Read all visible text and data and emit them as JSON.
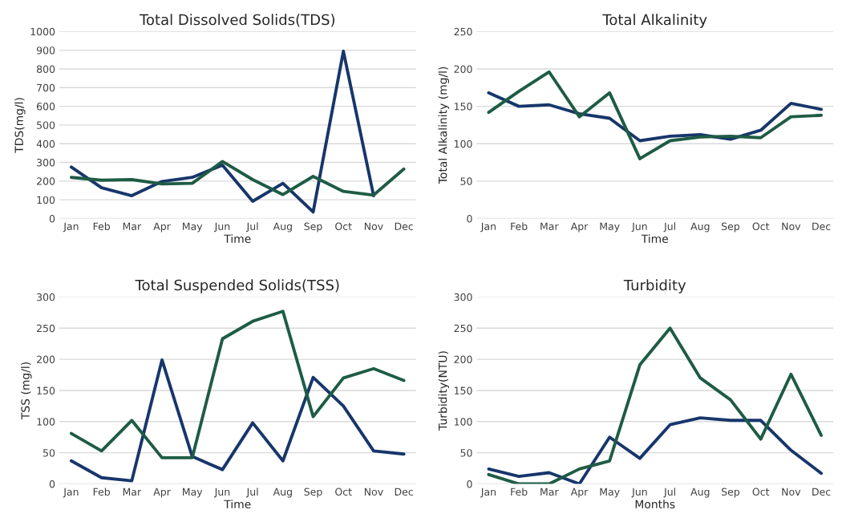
{
  "chart_data": [
    {
      "type": "line",
      "title": "Total Dissolved Solids(TDS)",
      "xlabel": "Time",
      "ylabel": "TDS(mg/l)",
      "categories": [
        "Jan",
        "Feb",
        "Mar",
        "Apr",
        "May",
        "Jun",
        "Jul",
        "Aug",
        "Sep",
        "Oct",
        "Nov",
        "Dec"
      ],
      "ylim": [
        0,
        1000
      ],
      "yticks": [
        0,
        100,
        200,
        300,
        400,
        500,
        600,
        700,
        800,
        900,
        1000
      ],
      "grid": "y",
      "marker": "none",
      "line_style": "solid",
      "series": [
        {
          "color": "#17366b",
          "values": [
            275,
            165,
            122,
            198,
            220,
            285,
            92,
            188,
            35,
            895,
            122,
            null
          ]
        },
        {
          "color": "#1e5c44",
          "values": [
            220,
            205,
            208,
            185,
            188,
            305,
            208,
            128,
            225,
            145,
            125,
            265
          ]
        }
      ]
    },
    {
      "type": "line",
      "title": "Total Alkalinity",
      "xlabel": "Time",
      "ylabel": "Total Alkalinity (mg/l)",
      "categories": [
        "Jan",
        "Feb",
        "Mar",
        "Apr",
        "May",
        "Jun",
        "Jul",
        "Aug",
        "Sep",
        "Oct",
        "Nov",
        "Dec"
      ],
      "ylim": [
        0,
        250
      ],
      "yticks": [
        0,
        50,
        100,
        150,
        200,
        250
      ],
      "grid": "y",
      "marker": "none",
      "line_style": "solid",
      "series": [
        {
          "color": "#17366b",
          "values": [
            168,
            150,
            152,
            140,
            134,
            104,
            110,
            112,
            106,
            118,
            154,
            146
          ]
        },
        {
          "color": "#1e5c44",
          "values": [
            142,
            170,
            196,
            136,
            168,
            80,
            104,
            109,
            110,
            108,
            136,
            138
          ]
        }
      ]
    },
    {
      "type": "line",
      "title": "Total Suspended Solids(TSS)",
      "xlabel": "Time",
      "ylabel": "TSS (mg/l)",
      "categories": [
        "Jan",
        "Feb",
        "Mar",
        "Apr",
        "May",
        "Jun",
        "Jul",
        "Aug",
        "Sep",
        "Oct",
        "Nov",
        "Dec"
      ],
      "ylim": [
        0,
        300
      ],
      "yticks": [
        0,
        50,
        100,
        150,
        200,
        250,
        300
      ],
      "grid": "y",
      "marker": "none",
      "line_style": "solid",
      "series": [
        {
          "color": "#17366b",
          "values": [
            37,
            10,
            5,
            199,
            44,
            23,
            98,
            37,
            171,
            125,
            53,
            48
          ]
        },
        {
          "color": "#1e5c44",
          "values": [
            81,
            53,
            102,
            42,
            42,
            233,
            261,
            277,
            108,
            170,
            185,
            166
          ]
        }
      ]
    },
    {
      "type": "line",
      "title": "Turbidity",
      "xlabel": "Months",
      "ylabel": "Turbidity(NTU)",
      "categories": [
        "Jan",
        "Feb",
        "Mar",
        "Apr",
        "May",
        "Jun",
        "Jul",
        "Aug",
        "Sep",
        "Oct",
        "Nov",
        "Dec"
      ],
      "ylim": [
        0,
        300
      ],
      "yticks": [
        0,
        50,
        100,
        150,
        200,
        250,
        300
      ],
      "grid": "y",
      "marker": "none",
      "line_style": "solid",
      "series": [
        {
          "color": "#17366b",
          "values": [
            24,
            12,
            18,
            0,
            75,
            41,
            95,
            106,
            102,
            102,
            54,
            17
          ]
        },
        {
          "color": "#1e5c44",
          "values": [
            15,
            0,
            0,
            24,
            37,
            191,
            250,
            170,
            135,
            72,
            176,
            78
          ]
        }
      ]
    }
  ]
}
